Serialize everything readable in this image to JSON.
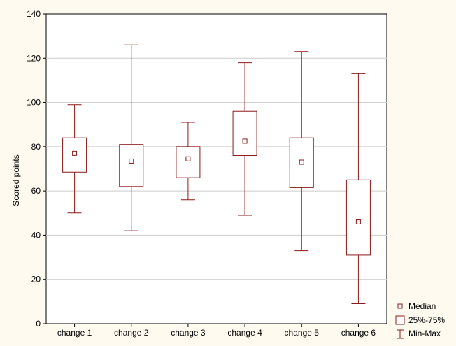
{
  "chart_data": {
    "type": "box",
    "title": "",
    "xlabel": "",
    "ylabel": "Scored points",
    "ylim": [
      0,
      140
    ],
    "yticks": [
      0,
      20,
      40,
      60,
      80,
      100,
      120,
      140
    ],
    "grid": true,
    "legend_position": "bottom-right",
    "categories": [
      "change 1",
      "change 2",
      "change 3",
      "change 4",
      "change 5",
      "change 6"
    ],
    "series": [
      {
        "category": "change 1",
        "min": 50,
        "q1": 68.5,
        "median": 77,
        "q3": 84,
        "max": 99
      },
      {
        "category": "change 2",
        "min": 42,
        "q1": 62,
        "median": 73.5,
        "q3": 81,
        "max": 126
      },
      {
        "category": "change 3",
        "min": 56,
        "q1": 66,
        "median": 74.5,
        "q3": 80,
        "max": 91
      },
      {
        "category": "change 4",
        "min": 49,
        "q1": 76,
        "median": 82.5,
        "q3": 96,
        "max": 118
      },
      {
        "category": "change 5",
        "min": 33,
        "q1": 61.5,
        "median": 73,
        "q3": 84,
        "max": 123
      },
      {
        "category": "change 6",
        "min": 9,
        "q1": 31,
        "median": 46,
        "q3": 65,
        "max": 113
      }
    ],
    "legend": [
      {
        "symbol": "median-marker",
        "label": "Median"
      },
      {
        "symbol": "box",
        "label": "25%-75%"
      },
      {
        "symbol": "whisker",
        "label": "Min-Max"
      }
    ],
    "colors": {
      "box_stroke": "#8b1a1a",
      "plot_background": "#ffffff",
      "page_background": "#fefaf0",
      "grid": "#cccccc"
    }
  }
}
